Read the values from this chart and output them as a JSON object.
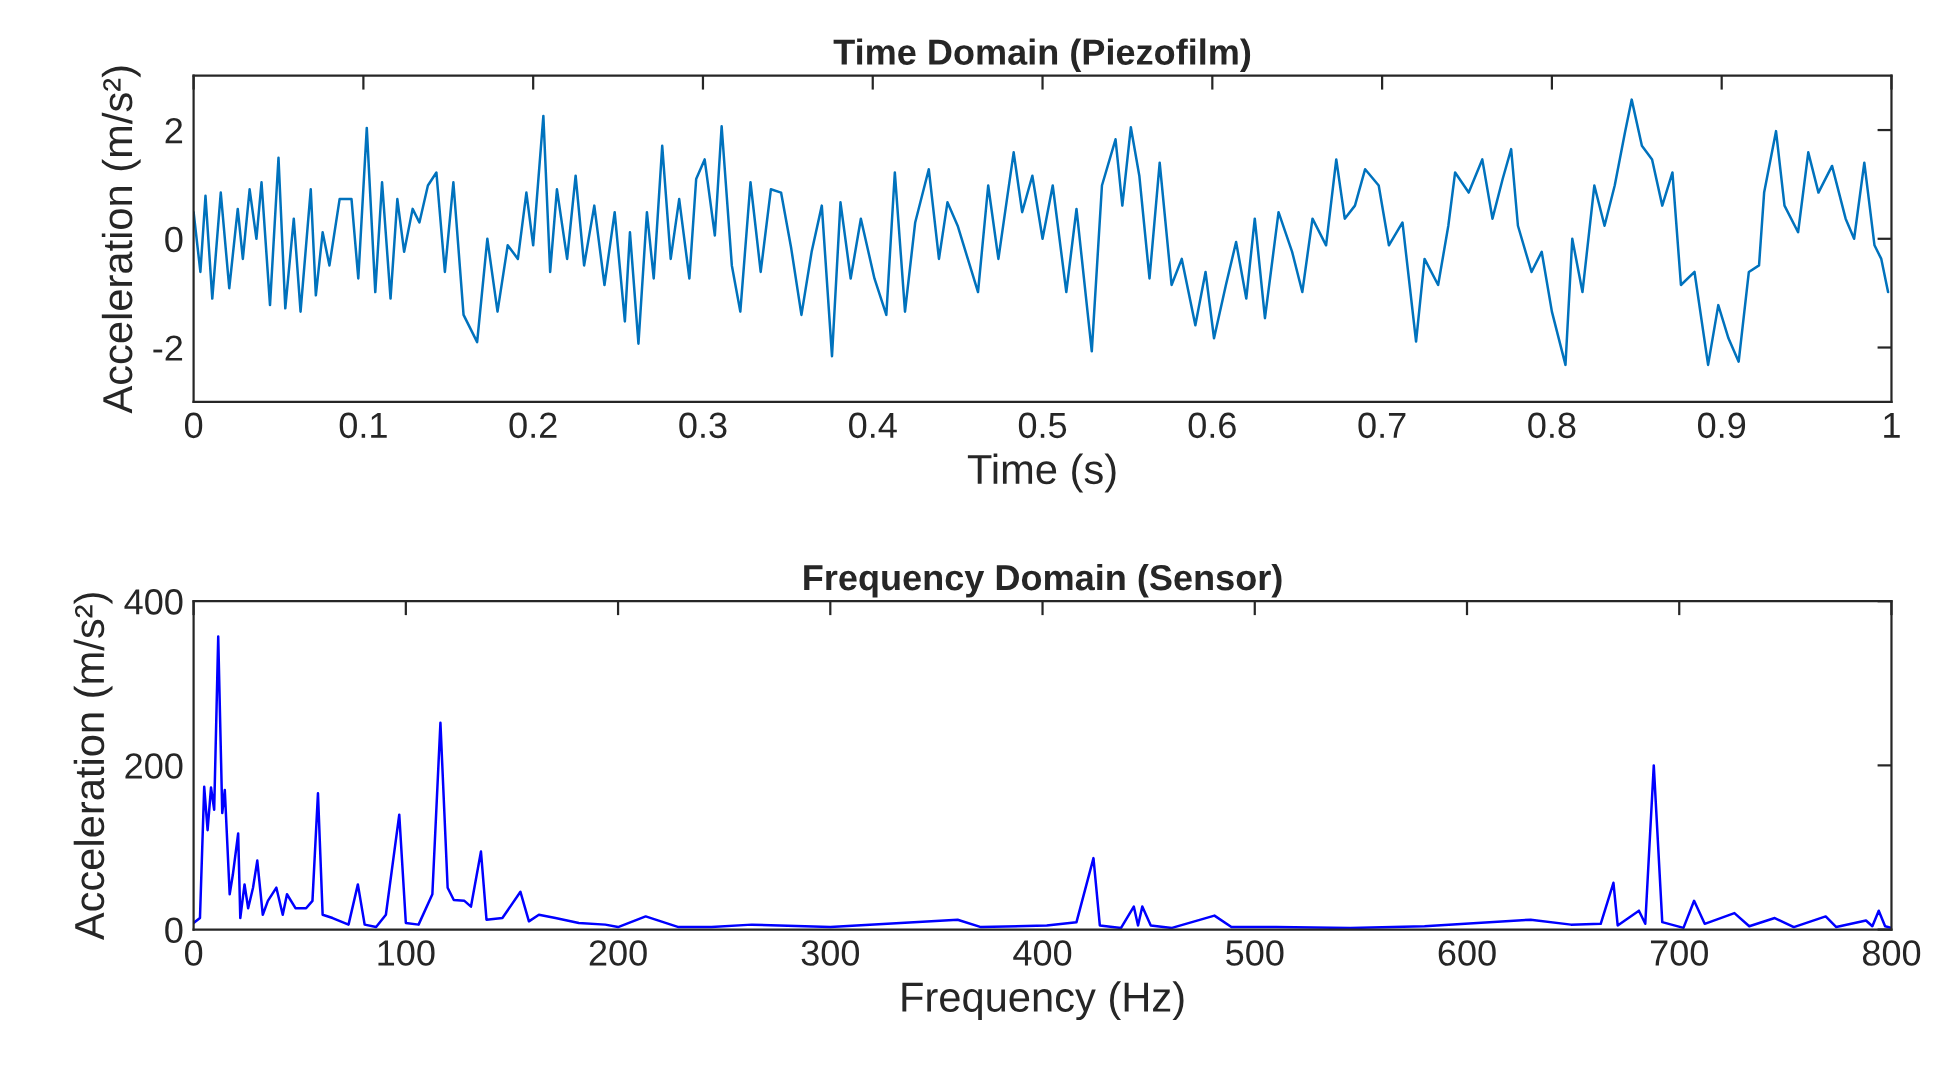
{
  "chart_data": [
    {
      "type": "line",
      "title": "Time Domain (Piezofilm)",
      "xlabel": "Time (s)",
      "ylabel": "Acceleration (m/s²)",
      "xlim": [
        0,
        1
      ],
      "ylim": [
        -3,
        3
      ],
      "xticks": [
        0,
        0.1,
        0.2,
        0.3,
        0.4,
        0.5,
        0.6,
        0.7,
        0.8,
        0.9,
        1
      ],
      "yticks": [
        -2,
        0,
        2
      ],
      "grid": false,
      "legend": false,
      "marker": "none",
      "line_style": "solid",
      "series": [
        {
          "color": "#0072bd",
          "x": [
            0.0,
            0.004,
            0.007,
            0.011,
            0.016,
            0.021,
            0.026,
            0.029,
            0.033,
            0.037,
            0.04,
            0.045,
            0.05,
            0.054,
            0.059,
            0.063,
            0.069,
            0.072,
            0.076,
            0.08,
            0.086,
            0.093,
            0.097,
            0.102,
            0.107,
            0.111,
            0.116,
            0.12,
            0.124,
            0.129,
            0.133,
            0.138,
            0.143,
            0.148,
            0.153,
            0.159,
            0.167,
            0.173,
            0.179,
            0.185,
            0.191,
            0.196,
            0.2,
            0.206,
            0.21,
            0.214,
            0.22,
            0.225,
            0.23,
            0.236,
            0.242,
            0.248,
            0.254,
            0.257,
            0.262,
            0.267,
            0.271,
            0.276,
            0.281,
            0.286,
            0.292,
            0.296,
            0.301,
            0.307,
            0.311,
            0.317,
            0.322,
            0.328,
            0.334,
            0.34,
            0.346,
            0.352,
            0.358,
            0.364,
            0.37,
            0.376,
            0.381,
            0.387,
            0.393,
            0.401,
            0.408,
            0.413,
            0.419,
            0.425,
            0.433,
            0.439,
            0.444,
            0.45,
            0.456,
            0.462,
            0.468,
            0.474,
            0.483,
            0.488,
            0.494,
            0.5,
            0.506,
            0.514,
            0.52,
            0.529,
            0.535,
            0.543,
            0.547,
            0.552,
            0.557,
            0.563,
            0.569,
            0.576,
            0.582,
            0.59,
            0.596,
            0.601,
            0.608,
            0.614,
            0.62,
            0.625,
            0.631,
            0.639,
            0.647,
            0.653,
            0.659,
            0.667,
            0.673,
            0.678,
            0.684,
            0.69,
            0.698,
            0.704,
            0.712,
            0.72,
            0.725,
            0.733,
            0.739,
            0.743,
            0.751,
            0.759,
            0.765,
            0.771,
            0.776,
            0.78,
            0.788,
            0.794,
            0.8,
            0.808,
            0.812,
            0.818,
            0.825,
            0.831,
            0.837,
            0.843,
            0.847,
            0.853,
            0.859,
            0.865,
            0.871,
            0.876,
            0.884,
            0.892,
            0.898,
            0.904,
            0.91,
            0.916,
            0.922,
            0.925,
            0.932,
            0.937,
            0.945,
            0.951,
            0.957,
            0.965,
            0.973,
            0.978,
            0.984,
            0.99,
            0.994,
            0.998
          ],
          "values": [
            0.49,
            -0.61,
            0.79,
            -1.1,
            0.85,
            -0.91,
            0.55,
            -0.37,
            0.91,
            0.0,
            1.04,
            -1.22,
            1.49,
            -1.28,
            0.37,
            -1.34,
            0.91,
            -1.04,
            0.12,
            -0.49,
            0.73,
            0.73,
            -0.73,
            2.04,
            -0.98,
            1.04,
            -1.1,
            0.73,
            -0.24,
            0.55,
            0.3,
            0.98,
            1.22,
            -0.61,
            1.04,
            -1.4,
            -1.9,
            0.0,
            -1.34,
            -0.12,
            -0.37,
            0.85,
            -0.12,
            2.26,
            -0.61,
            0.91,
            -0.37,
            1.16,
            -0.49,
            0.61,
            -0.85,
            0.49,
            -1.52,
            0.12,
            -1.93,
            0.49,
            -0.73,
            1.71,
            -0.37,
            0.73,
            -0.73,
            1.1,
            1.46,
            0.06,
            2.07,
            -0.49,
            -1.34,
            1.04,
            -0.61,
            0.91,
            0.85,
            -0.18,
            -1.4,
            -0.24,
            0.61,
            -2.16,
            0.67,
            -0.73,
            0.37,
            -0.73,
            -1.4,
            1.22,
            -1.34,
            0.3,
            1.28,
            -0.37,
            0.67,
            0.24,
            -0.37,
            -0.98,
            0.98,
            -0.37,
            1.59,
            0.49,
            1.16,
            0.0,
            0.98,
            -0.98,
            0.55,
            -2.07,
            0.98,
            1.83,
            0.61,
            2.05,
            1.16,
            -0.73,
            1.4,
            -0.85,
            -0.37,
            -1.59,
            -0.61,
            -1.83,
            -0.85,
            -0.06,
            -1.1,
            0.37,
            -1.46,
            0.49,
            -0.24,
            -0.98,
            0.37,
            -0.12,
            1.46,
            0.37,
            0.61,
            1.28,
            0.98,
            -0.12,
            0.3,
            -1.89,
            -0.37,
            -0.85,
            0.24,
            1.22,
            0.85,
            1.46,
            0.37,
            1.1,
            1.65,
            0.24,
            -0.61,
            -0.24,
            -1.34,
            -2.32,
            0.0,
            -0.98,
            0.98,
            0.24,
            0.98,
            1.95,
            2.56,
            1.71,
            1.46,
            0.61,
            1.22,
            -0.85,
            -0.61,
            -2.32,
            -1.22,
            -1.83,
            -2.26,
            -0.61,
            -0.49,
            0.85,
            1.98,
            0.61,
            0.12,
            1.59,
            0.85,
            1.34,
            0.37,
            0.0,
            1.4,
            -0.12,
            -0.37,
            -0.98
          ]
        }
      ]
    },
    {
      "type": "line",
      "title": "Frequency Domain (Sensor)",
      "xlabel": "Frequency (Hz)",
      "ylabel": "Acceleration (m/s²)",
      "xlim": [
        0,
        800
      ],
      "ylim": [
        0,
        400
      ],
      "xticks": [
        0,
        100,
        200,
        300,
        400,
        500,
        600,
        700,
        800
      ],
      "yticks": [
        0,
        200,
        400
      ],
      "grid": false,
      "legend": false,
      "marker": "none",
      "line_style": "solid",
      "series": [
        {
          "color": "#0000ff",
          "x": [
            0,
            3,
            5,
            6.6,
            8.2,
            9.7,
            11.6,
            13.5,
            14.7,
            17,
            18.5,
            21,
            22,
            24,
            25.7,
            28,
            30,
            32.6,
            35,
            39,
            42,
            44,
            48,
            53,
            56,
            58.6,
            60.8,
            65.5,
            73,
            77.4,
            80.6,
            86,
            90.6,
            96.9,
            100,
            106,
            112.5,
            116.3,
            119.7,
            122.6,
            127.6,
            130.7,
            135.4,
            138,
            145.5,
            154,
            158,
            162.7,
            170.5,
            181.5,
            194,
            200,
            213,
            228.5,
            244,
            263,
            300,
            360,
            371,
            402,
            416,
            424,
            427,
            437,
            443,
            445,
            447,
            451,
            461,
            481,
            489,
            510,
            545,
            580,
            630,
            649,
            663,
            669,
            671,
            681,
            684,
            688,
            692,
            702,
            707,
            712,
            726,
            733,
            745,
            754,
            769,
            774,
            788,
            791,
            794,
            797,
            800
          ],
          "values": [
            8,
            14,
            174,
            121,
            173,
            146,
            357,
            142,
            170,
            43,
            67,
            117,
            14,
            55,
            26,
            51,
            84,
            18,
            35,
            51,
            18,
            43,
            26,
            26,
            35,
            166,
            18,
            14,
            6,
            55,
            6,
            3,
            18,
            140,
            8,
            6,
            43,
            252,
            51,
            36,
            35,
            28,
            95,
            12,
            14,
            46,
            10,
            18,
            14,
            8,
            6,
            3,
            16,
            3,
            3,
            6,
            3,
            12,
            3,
            5,
            9,
            87,
            5,
            2,
            28,
            5,
            28,
            5,
            2,
            17,
            3,
            3,
            2,
            4,
            12,
            6,
            7,
            57,
            5,
            23,
            7,
            200,
            9,
            2,
            35,
            7,
            20,
            4,
            14,
            3,
            16,
            3,
            11,
            4,
            23,
            4,
            2
          ]
        }
      ]
    }
  ]
}
